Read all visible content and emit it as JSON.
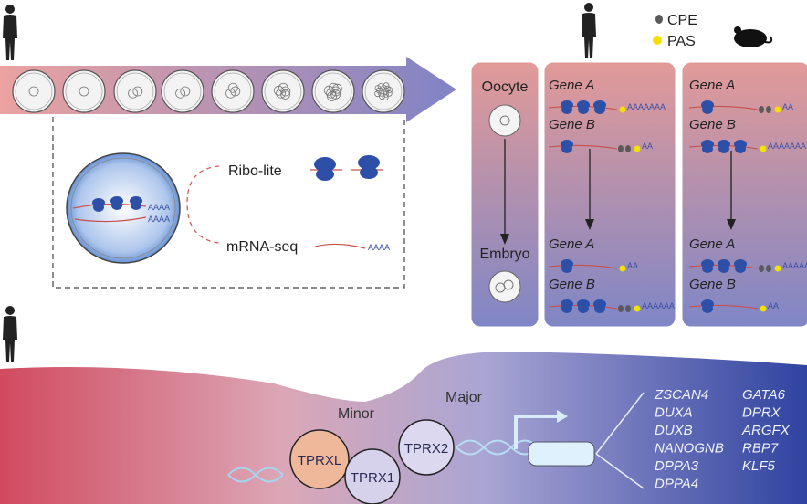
{
  "legend": {
    "cpe": "CPE",
    "pas": "PAS"
  },
  "colors": {
    "cpe": "#5a5a5a",
    "pas": "#f2e200",
    "ribosome": "#2d4fa8",
    "mrna": "#c8504a",
    "poly_a": "#3a4fa8",
    "tprxl": "#f0b89a",
    "tprx": "#d8d4ec"
  },
  "icons": [
    "human-icon",
    "mouse-icon",
    "ribosome-icon",
    "cell-icon"
  ],
  "methods": {
    "ribo_lite": "Ribo-lite",
    "mrna_seq": "mRNA-seq",
    "poly_a_cell": "AAAA",
    "poly_a_seq": "AAAA"
  },
  "stages": {
    "oocyte": "Oocyte",
    "embryo": "Embryo"
  },
  "human_panel": {
    "oocyte": [
      {
        "gene": "Gene A",
        "tail": "AAAAAAA"
      },
      {
        "gene": "Gene B",
        "tail": "AA"
      }
    ],
    "embryo": [
      {
        "gene": "Gene A",
        "tail": "AA"
      },
      {
        "gene": "Gene B",
        "tail": "AAAAAA"
      }
    ]
  },
  "mouse_panel": {
    "oocyte": [
      {
        "gene": "Gene A",
        "tail": "AA"
      },
      {
        "gene": "Gene B",
        "tail": "AAAAAAA"
      }
    ],
    "embryo": [
      {
        "gene": "Gene A",
        "tail": "AAAAAA"
      },
      {
        "gene": "Gene B",
        "tail": "AA"
      }
    ]
  },
  "activation": {
    "minor": "Minor",
    "major": "Major"
  },
  "factors": {
    "tprxl": "TPRXL",
    "tprx1": "TPRX1",
    "tprx2": "TPRX2"
  },
  "targets": {
    "col1": [
      "ZSCAN4",
      "DUXA",
      "DUXB",
      "NANOGNB",
      "DPPA3",
      "DPPA4"
    ],
    "col2": [
      "GATA6",
      "DPRX",
      "ARGFX",
      "RBP7",
      "KLF5"
    ]
  }
}
